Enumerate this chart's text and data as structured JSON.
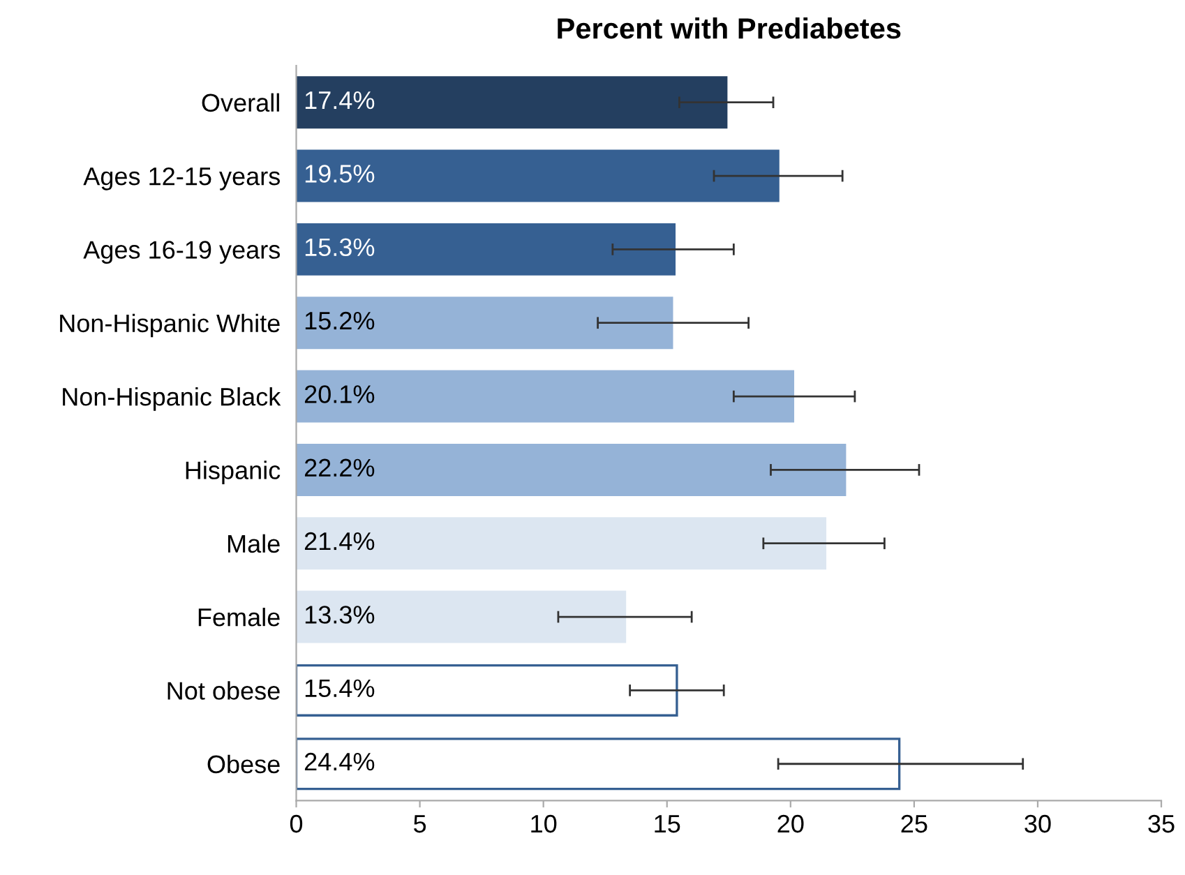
{
  "chart_data": {
    "type": "bar",
    "orientation": "horizontal",
    "title": "Percent with Prediabetes",
    "categories": [
      "Overall",
      "Ages 12-15 years",
      "Ages 16-19 years",
      "Non-Hispanic White",
      "Non-Hispanic Black",
      "Hispanic",
      "Male",
      "Female",
      "Not obese",
      "Obese"
    ],
    "values": [
      17.4,
      19.5,
      15.3,
      15.2,
      20.1,
      22.2,
      21.4,
      13.3,
      15.4,
      24.4
    ],
    "colors": [
      "#243f60",
      "#366092",
      "#366092",
      "#95b3d7",
      "#95b3d7",
      "#95b3d7",
      "#dce6f1",
      "#dce6f1",
      "#ffffff",
      "#ffffff"
    ],
    "errors": [
      [
        15.5,
        19.3
      ],
      [
        16.9,
        22.1
      ],
      [
        12.8,
        17.7
      ],
      [
        12.2,
        18.3
      ],
      [
        17.7,
        22.6
      ],
      [
        19.2,
        25.2
      ],
      [
        18.9,
        23.8
      ],
      [
        10.6,
        16.0
      ],
      [
        13.5,
        17.3
      ],
      [
        19.5,
        29.4
      ]
    ],
    "value_labels": [
      "17.4%",
      "19.5%",
      "15.3%",
      "15.2%",
      "20.1%",
      "22.2%",
      "21.4%",
      "13.3%",
      "15.4%",
      "24.4%"
    ],
    "xlim": [
      0,
      35
    ],
    "xticks": [
      0,
      5,
      10,
      15,
      20,
      25,
      30,
      35
    ],
    "grid": false,
    "legend": false
  }
}
